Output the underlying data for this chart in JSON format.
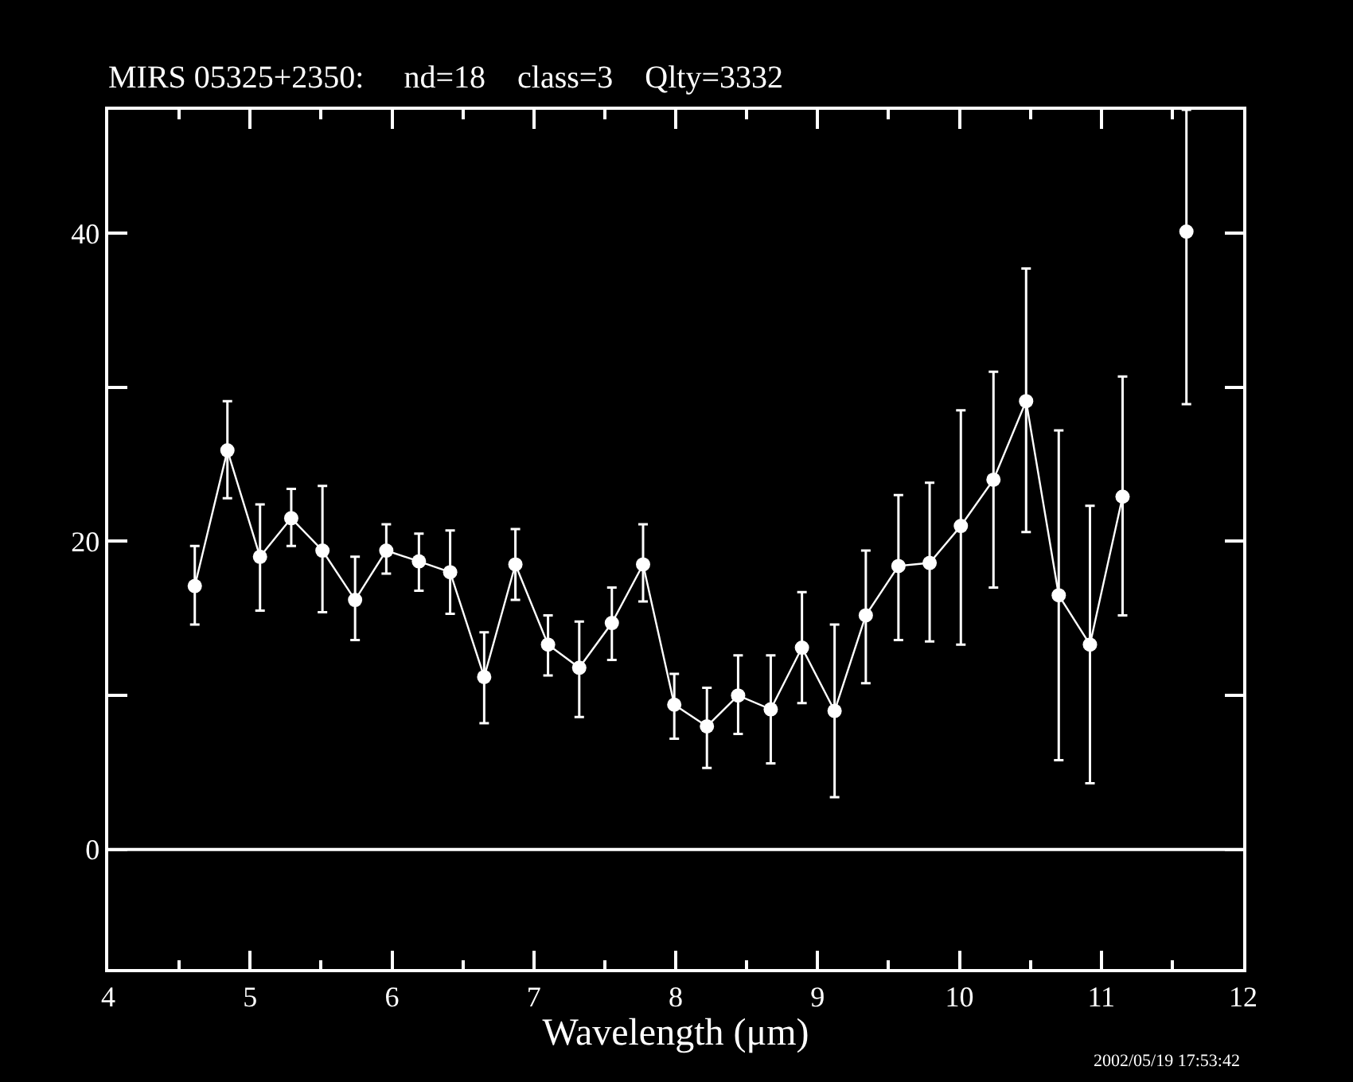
{
  "chart_data": {
    "type": "line",
    "title": "MIRS 05325+2350:     nd=18    class=3    Qlty=3332",
    "xlabel": "Wavelength (μm)",
    "annotations": [
      "2002/05/19 17:53:42"
    ],
    "xlim": [
      4,
      12
    ],
    "xticks": [
      4,
      5,
      6,
      7,
      8,
      9,
      10,
      11,
      12
    ],
    "ylim": [
      -7.75,
      48
    ],
    "yticks": [
      0,
      {
        "value": 10,
        "label": null
      },
      20,
      {
        "value": 30,
        "label": null
      },
      40
    ],
    "grid": false,
    "marker": "circle",
    "line_style": "solid",
    "ref_lines": [
      {
        "axis": "y",
        "value": 0,
        "color": "#ffffff"
      }
    ],
    "series": [
      {
        "color": "#ffffff",
        "x": [
          4.61,
          4.84,
          5.07,
          5.29,
          5.51,
          5.74,
          5.96,
          6.19,
          6.41,
          6.65,
          6.87,
          7.1,
          7.32,
          7.55,
          7.77,
          7.99,
          8.22,
          8.44,
          8.67,
          8.89,
          9.12,
          9.34,
          9.57,
          9.79,
          10.01,
          10.24,
          10.47,
          10.7,
          10.92,
          11.15
        ],
        "values": [
          17.1,
          25.9,
          19.0,
          21.5,
          19.4,
          16.2,
          19.4,
          18.7,
          18.0,
          11.2,
          18.5,
          13.3,
          11.8,
          14.7,
          18.5,
          9.4,
          8.0,
          10.0,
          9.1,
          13.1,
          9.0,
          15.2,
          18.4,
          18.6,
          21.0,
          24.0,
          29.1,
          16.5,
          13.3,
          22.9
        ],
        "errors": [
          [
            14.6,
            19.7
          ],
          [
            22.8,
            29.1
          ],
          [
            15.5,
            22.4
          ],
          [
            19.7,
            23.4
          ],
          [
            15.4,
            23.6
          ],
          [
            13.6,
            19.0
          ],
          [
            17.9,
            21.1
          ],
          [
            16.8,
            20.5
          ],
          [
            15.3,
            20.7
          ],
          [
            8.2,
            14.1
          ],
          [
            16.2,
            20.8
          ],
          [
            11.3,
            15.2
          ],
          [
            8.6,
            14.8
          ],
          [
            12.3,
            17.0
          ],
          [
            16.1,
            21.1
          ],
          [
            7.2,
            11.4
          ],
          [
            5.3,
            10.5
          ],
          [
            7.5,
            12.6
          ],
          [
            5.6,
            12.6
          ],
          [
            9.5,
            16.7
          ],
          [
            3.4,
            14.6
          ],
          [
            10.8,
            19.4
          ],
          [
            13.6,
            23.0
          ],
          [
            13.5,
            23.8
          ],
          [
            13.3,
            28.5
          ],
          [
            17.0,
            31.0
          ],
          [
            20.6,
            37.7
          ],
          [
            5.8,
            27.2
          ],
          [
            4.3,
            22.3
          ],
          [
            15.2,
            30.7
          ]
        ]
      },
      {
        "type": "scatter",
        "color": "#ffffff",
        "x": [
          11.6
        ],
        "values": [
          40.1
        ],
        "errors": [
          [
            28.9,
            48
          ]
        ]
      }
    ]
  }
}
